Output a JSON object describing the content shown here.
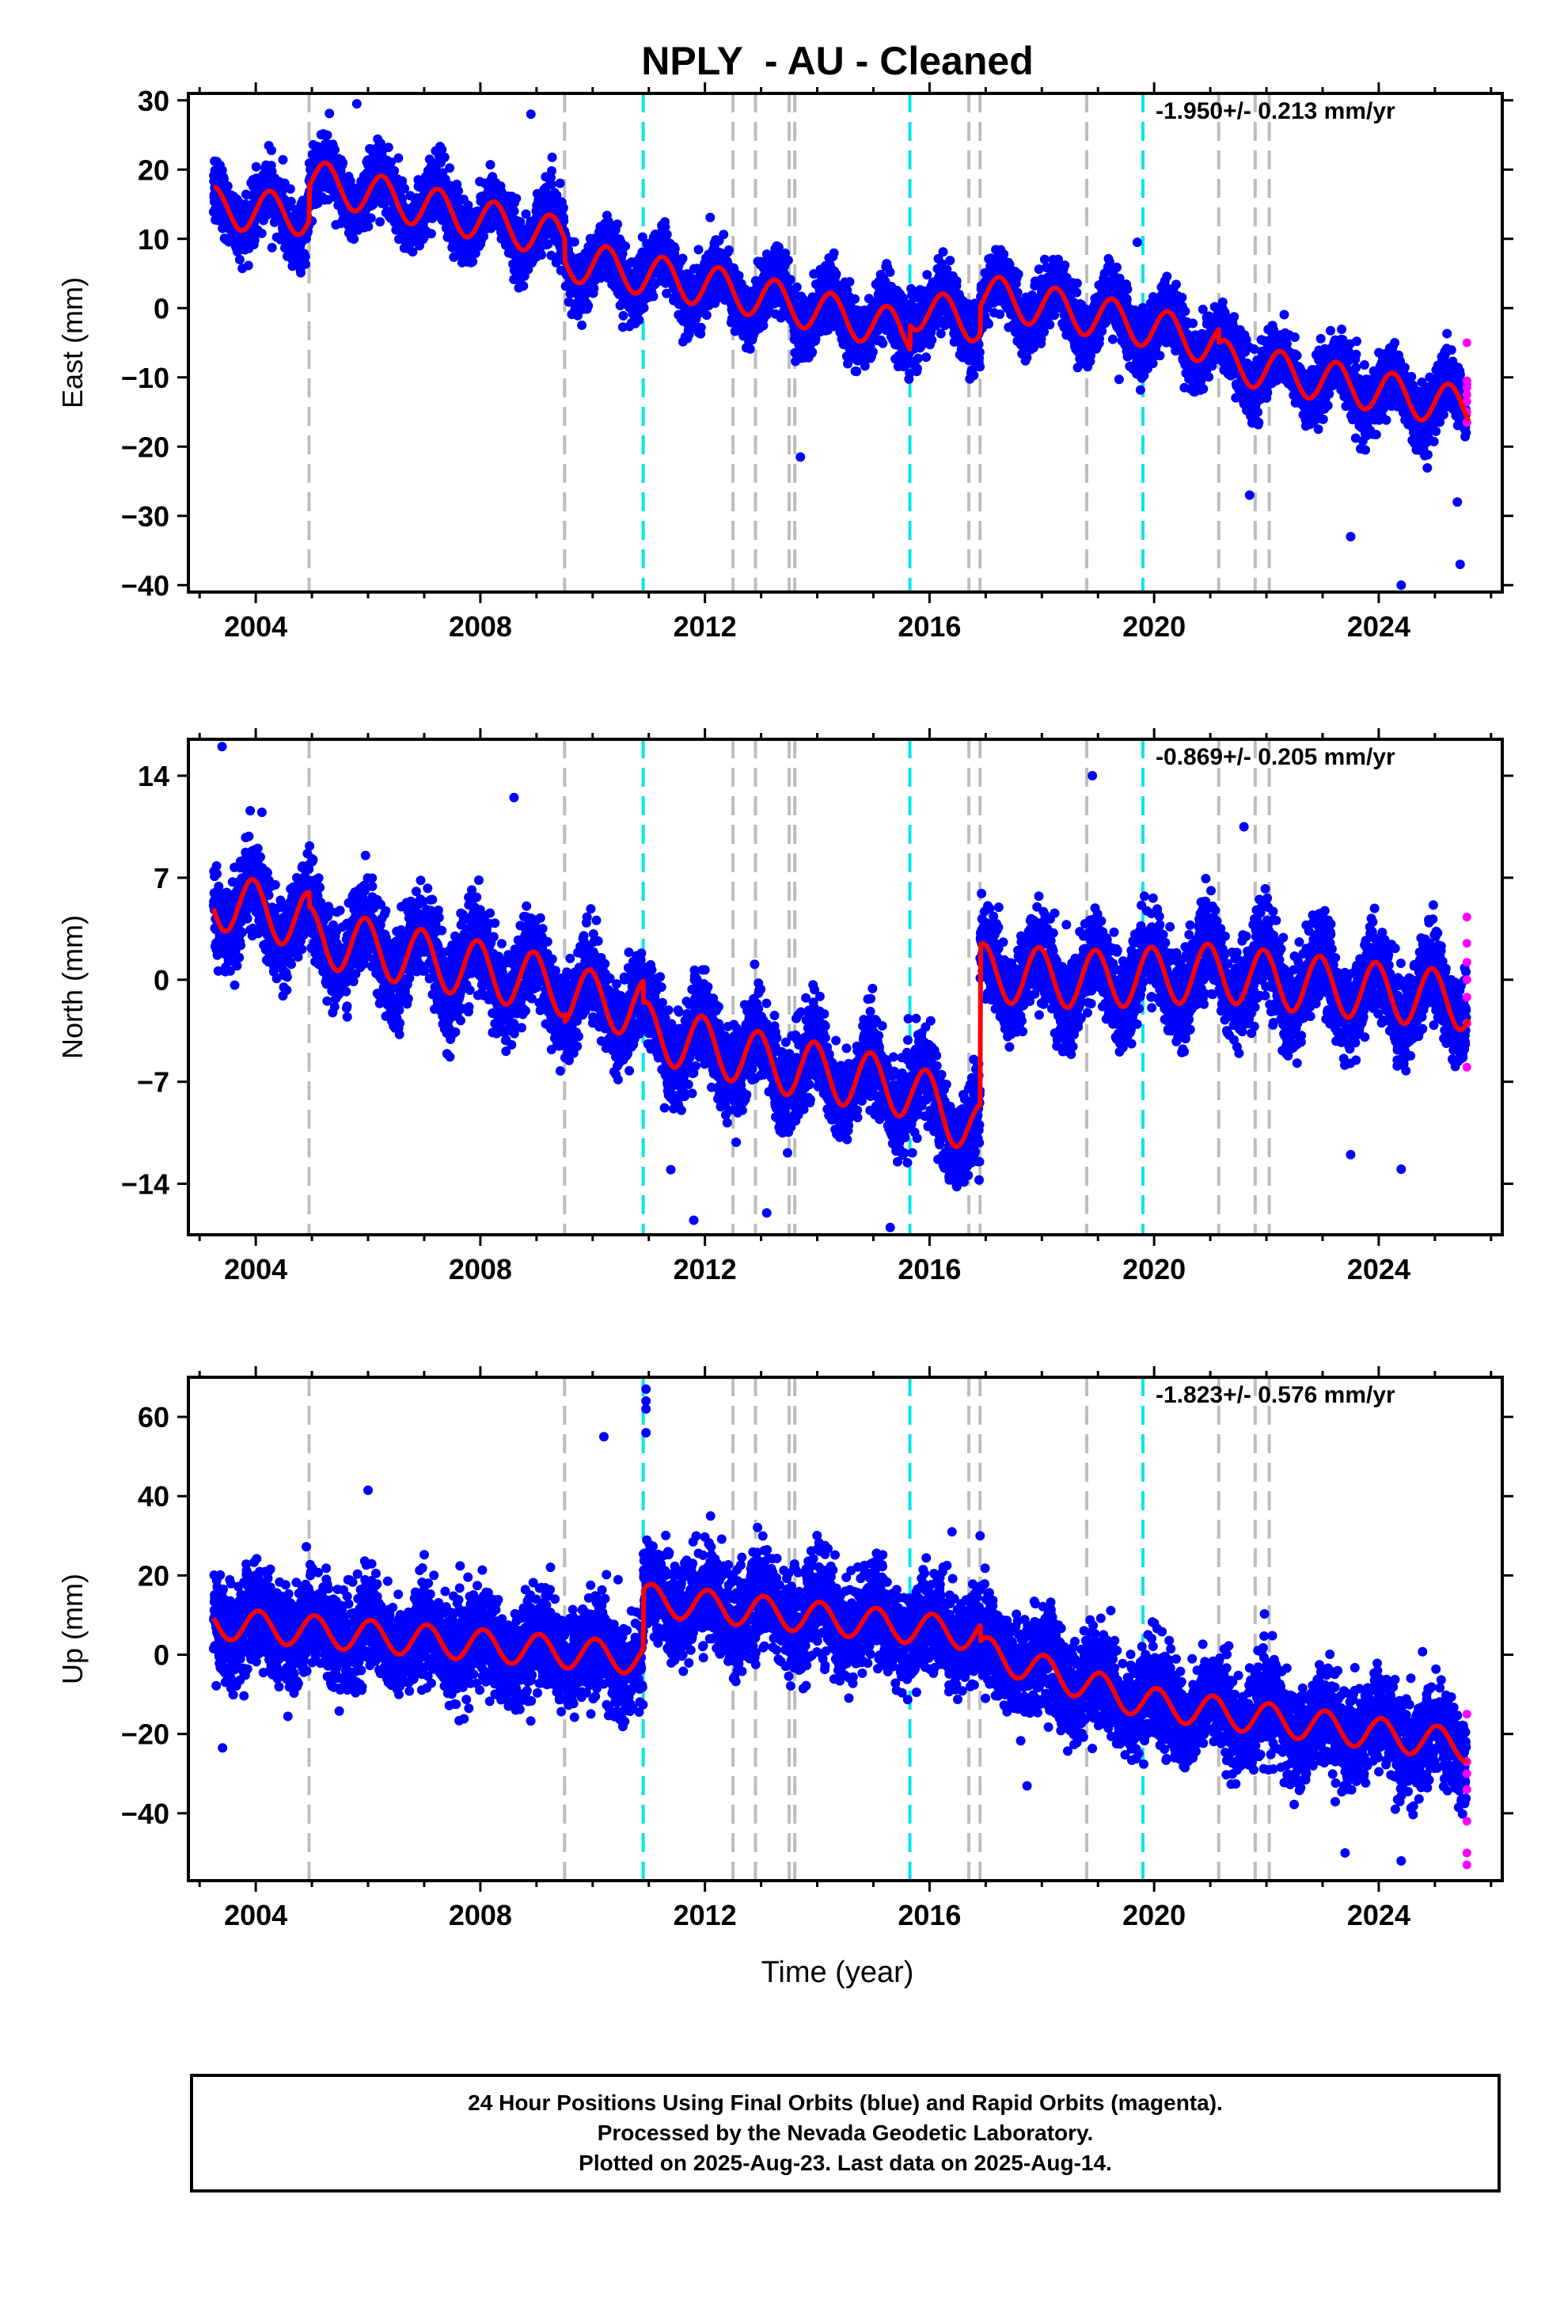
{
  "chart_data": {
    "type": "scatter",
    "title": "NPLY  - AU - Cleaned",
    "xlabel": "Time (year)",
    "xlim": [
      2002.8,
      2026.2
    ],
    "x_ticks": [
      2004,
      2008,
      2012,
      2016,
      2020,
      2024
    ],
    "x_tick_labels": [
      "2004",
      "2008",
      "2012",
      "2016",
      "2020",
      "2024"
    ],
    "legend": {
      "final_orbits_color": "#0000ff",
      "rapid_orbits_color": "#ff00ff",
      "model_color": "#ff0000"
    },
    "event_lines": {
      "gray": [
        2004.95,
        2009.5,
        2012.5,
        2012.9,
        2013.5,
        2013.6,
        2016.7,
        2016.9,
        2018.8,
        2021.15,
        2021.8,
        2022.05
      ],
      "cyan": [
        2010.9,
        2015.65,
        2019.8
      ]
    },
    "panels": [
      {
        "name": "East",
        "ylabel": "East (mm)",
        "ylim": [
          -41,
          31
        ],
        "y_ticks": [
          -40,
          -30,
          -20,
          -10,
          0,
          10,
          20,
          30
        ],
        "y_tick_labels": [
          "−40",
          "−30",
          "−20",
          "−10",
          "0",
          "10",
          "20",
          "30"
        ],
        "rate_label": "-1.950+/- 0.213 mm/yr",
        "scatter_sigma": 2.2,
        "model": {
          "trend_points": [
            [
              2003.25,
              14.5
            ],
            [
              2004.95,
              13.5
            ],
            [
              2004.95,
              18.5
            ],
            [
              2009.5,
              10.0
            ],
            [
              2009.5,
              7.0
            ],
            [
              2012.5,
              2.5
            ],
            [
              2015.65,
              -3.5
            ],
            [
              2015.65,
              0.0
            ],
            [
              2016.9,
              -2.0
            ],
            [
              2016.9,
              2.0
            ],
            [
              2019.8,
              -2.5
            ],
            [
              2021.15,
              -5.5
            ],
            [
              2021.15,
              -7.5
            ],
            [
              2025.6,
              -14.5
            ]
          ],
          "amplitude": 3.0,
          "phase": 0.0
        },
        "rapid": [
          [
            2025.57,
            -5
          ],
          [
            2025.57,
            -10.5
          ],
          [
            2025.57,
            -11.5
          ],
          [
            2025.57,
            -12.5
          ],
          [
            2025.57,
            -13.5
          ],
          [
            2025.57,
            -15
          ],
          [
            2025.57,
            -16.5
          ]
        ],
        "outliers": [
          [
            2005.8,
            29.5
          ],
          [
            2008.9,
            28.0
          ],
          [
            2013.7,
            -21.5
          ],
          [
            2019.7,
            9.5
          ],
          [
            2024.4,
            -40.0
          ],
          [
            2025.45,
            -37.0
          ],
          [
            2023.5,
            -33.0
          ],
          [
            2025.4,
            -28.0
          ],
          [
            2021.7,
            -27.0
          ]
        ]
      },
      {
        "name": "North",
        "ylabel": "North (mm)",
        "ylim": [
          -17.5,
          16.5
        ],
        "y_ticks": [
          -14,
          -7,
          0,
          7,
          14
        ],
        "y_tick_labels": [
          "−14",
          "−7",
          "0",
          "7",
          "14"
        ],
        "rate_label": "-0.869+/- 0.205 mm/yr",
        "scatter_sigma": 1.5,
        "model": {
          "trend_points": [
            [
              2003.25,
              5.5
            ],
            [
              2004.95,
              4.0
            ],
            [
              2004.95,
              3.0
            ],
            [
              2009.5,
              -0.5
            ],
            [
              2009.5,
              -1.0
            ],
            [
              2010.9,
              -2.0
            ],
            [
              2010.9,
              -3.5
            ],
            [
              2012.5,
              -5.0
            ],
            [
              2012.9,
              -5.5
            ],
            [
              2015.65,
              -7.5
            ],
            [
              2016.9,
              -10.5
            ],
            [
              2016.9,
              0.5
            ],
            [
              2018.8,
              0.0
            ],
            [
              2021.15,
              0.5
            ],
            [
              2022.05,
              0.0
            ],
            [
              2025.6,
              -1.5
            ]
          ],
          "amplitude": 2.0,
          "phase": 0.3
        },
        "rapid": [
          [
            2025.57,
            4.3
          ],
          [
            2025.57,
            2.5
          ],
          [
            2025.57,
            1.2
          ],
          [
            2025.57,
            0.0
          ],
          [
            2025.57,
            -1.2
          ],
          [
            2025.57,
            -3.0
          ],
          [
            2025.57,
            -6.0
          ]
        ],
        "outliers": [
          [
            2003.4,
            16.0
          ],
          [
            2008.6,
            12.5
          ],
          [
            2018.9,
            14.0
          ],
          [
            2021.6,
            10.5
          ],
          [
            2011.8,
            -16.5
          ],
          [
            2013.1,
            -16.0
          ],
          [
            2015.3,
            -17.0
          ],
          [
            2023.5,
            -12.0
          ],
          [
            2024.4,
            -13.0
          ]
        ]
      },
      {
        "name": "Up",
        "ylabel": "Up (mm)",
        "ylim": [
          -57,
          70
        ],
        "y_ticks": [
          -40,
          -20,
          0,
          20,
          40,
          60
        ],
        "y_tick_labels": [
          "−40",
          "−20",
          "0",
          "20",
          "40",
          "60"
        ],
        "rate_label": "-1.823+/- 0.576 mm/yr",
        "scatter_sigma": 6.0,
        "model": {
          "trend_points": [
            [
              2003.25,
              8.0
            ],
            [
              2010.9,
              -1.0
            ],
            [
              2010.9,
              14.0
            ],
            [
              2016.9,
              5.0
            ],
            [
              2016.9,
              1.0
            ],
            [
              2019.8,
              -12.0
            ],
            [
              2025.6,
              -23.0
            ]
          ],
          "amplitude": 4.0,
          "phase": 0.2
        },
        "rapid": [
          [
            2025.57,
            -15
          ],
          [
            2025.57,
            -27
          ],
          [
            2025.57,
            -30
          ],
          [
            2025.57,
            -34
          ],
          [
            2025.57,
            -42
          ],
          [
            2025.57,
            -50
          ],
          [
            2025.57,
            -53
          ]
        ],
        "outliers": [
          [
            2010.95,
            67.0
          ],
          [
            2010.95,
            64.0
          ],
          [
            2010.95,
            62.0
          ],
          [
            2010.95,
            56.0
          ],
          [
            2010.2,
            55.0
          ],
          [
            2006.0,
            41.5
          ],
          [
            2012.1,
            35.0
          ],
          [
            2016.4,
            31.0
          ],
          [
            2016.9,
            30.0
          ],
          [
            2023.4,
            -50.0
          ],
          [
            2024.4,
            -52.0
          ]
        ]
      }
    ]
  },
  "footer": {
    "line1": "24 Hour Positions Using Final Orbits (blue) and Rapid Orbits (magenta).",
    "line2": "Processed by the Nevada Geodetic Laboratory.",
    "line3": "Plotted on 2025-Aug-23. Last data on 2025-Aug-14."
  }
}
